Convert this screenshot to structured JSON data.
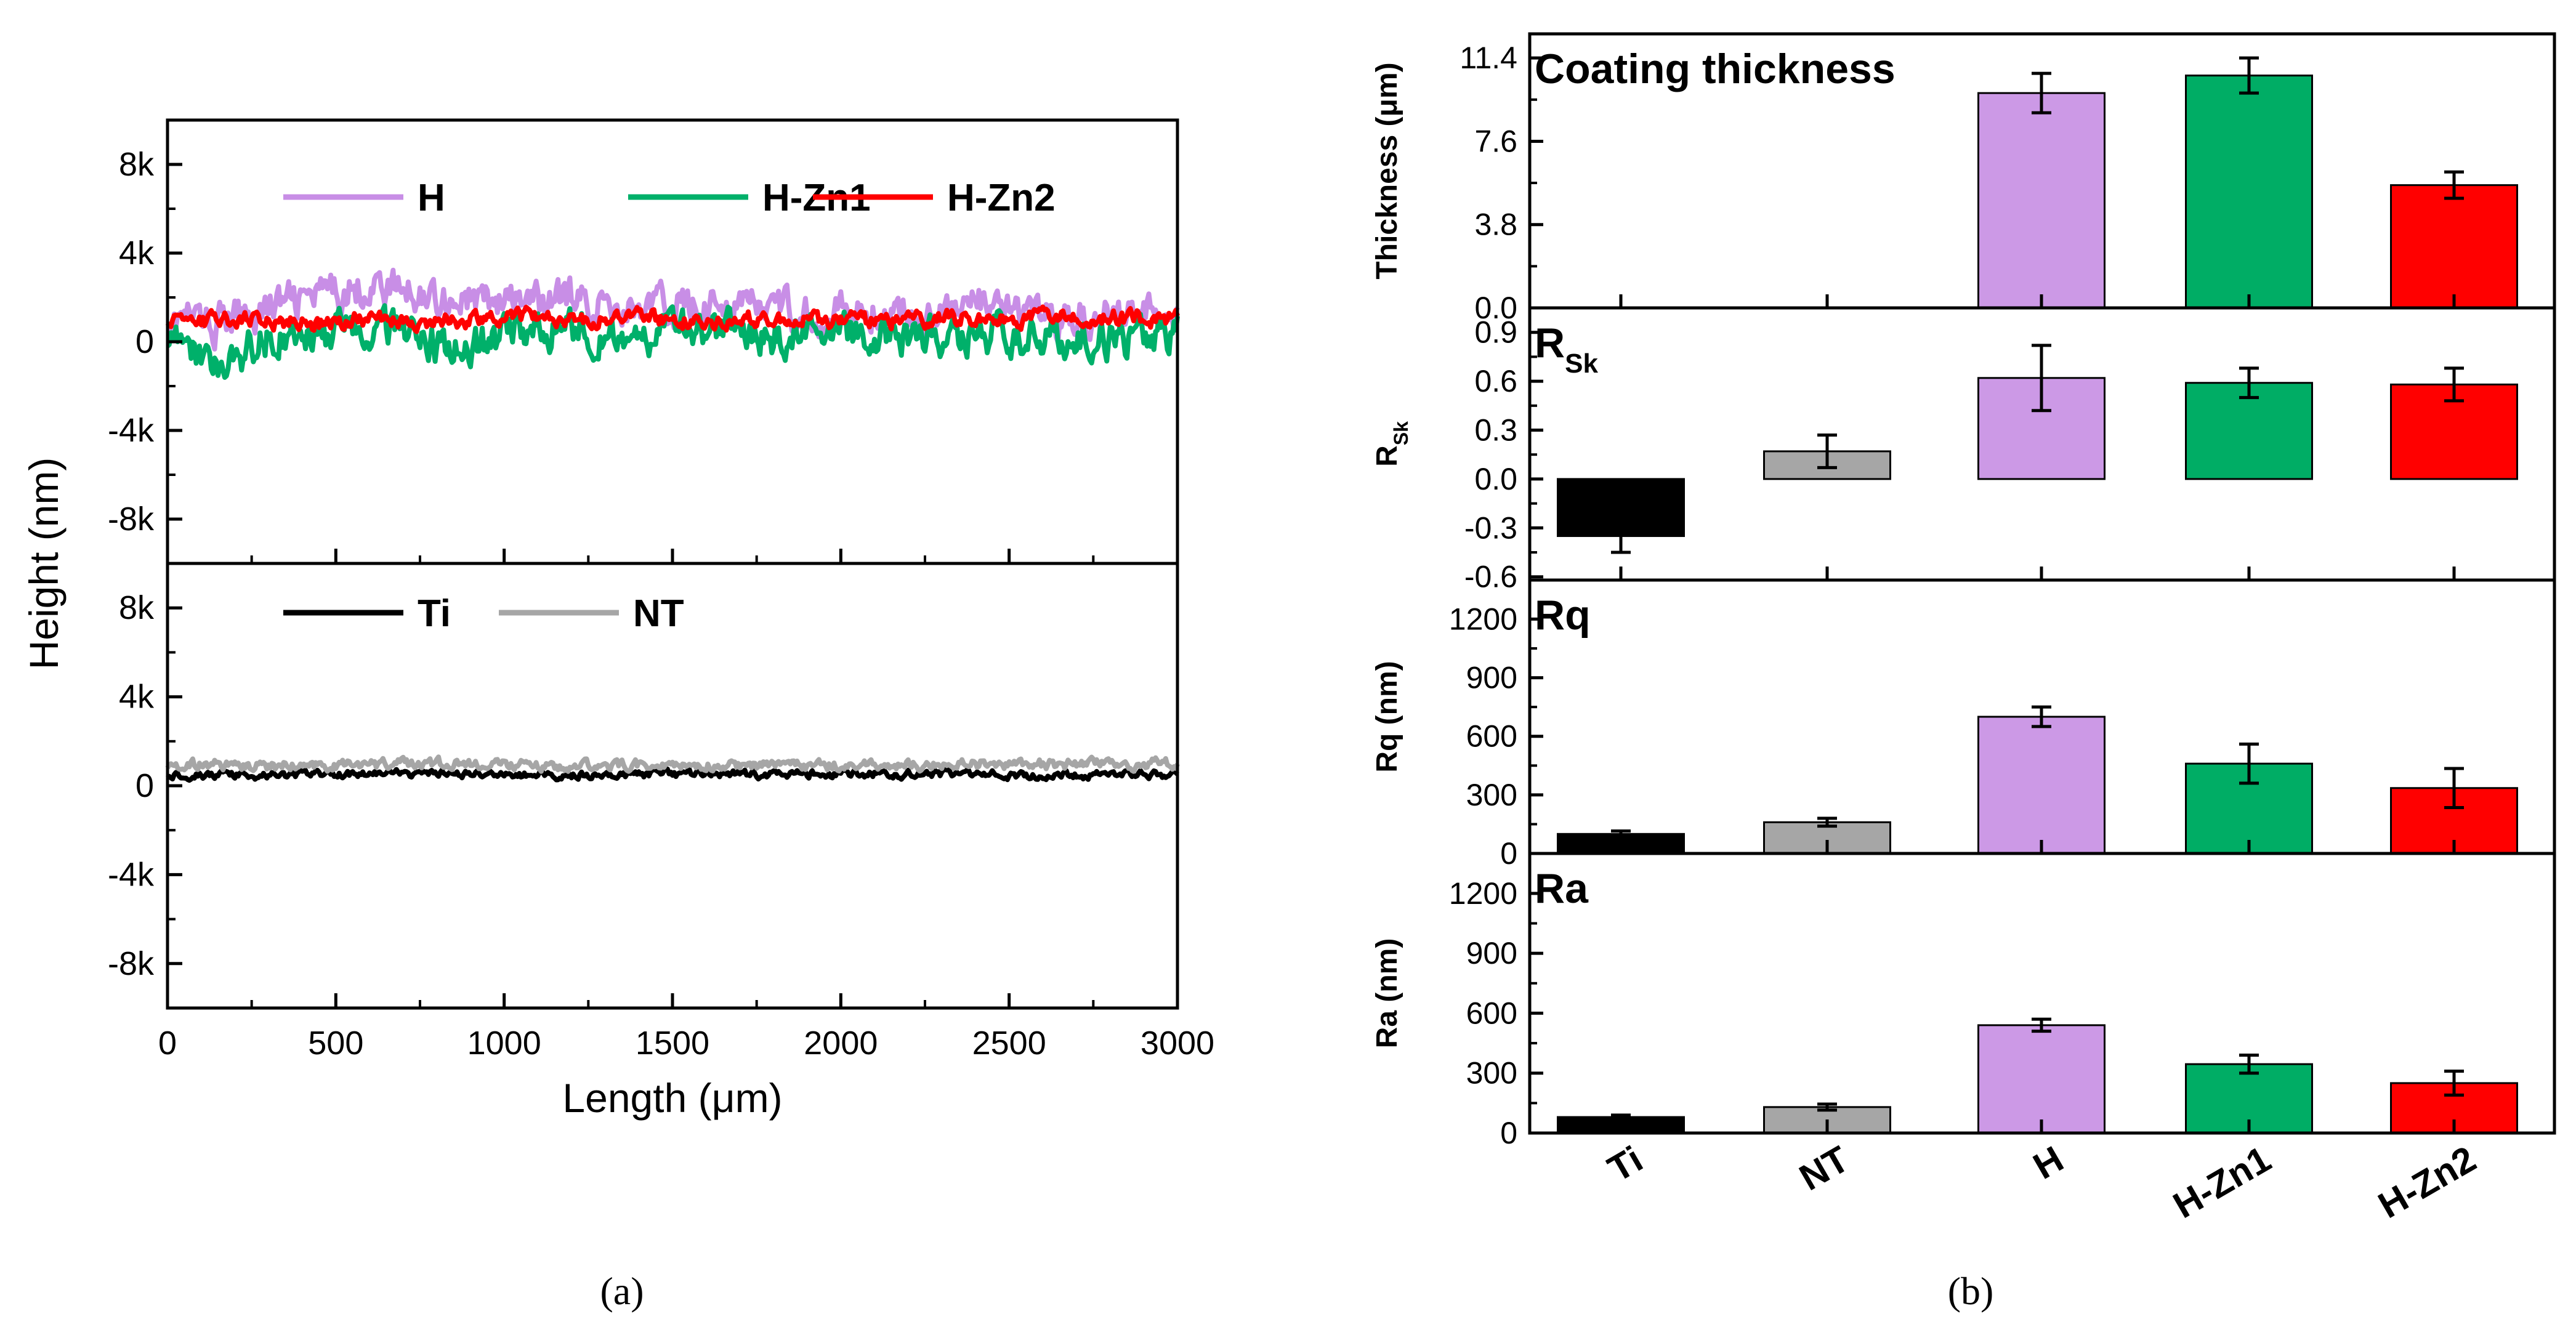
{
  "chart_data": [
    {
      "type": "line",
      "panel": "(a)",
      "title": "",
      "xlabel": "Length (μm)",
      "ylabel": "Height (nm)",
      "xlim": [
        0,
        3000
      ],
      "x_ticks": [
        0,
        500,
        1000,
        1500,
        2000,
        2500,
        3000
      ],
      "x_tick_labels": [
        "0",
        "500",
        "1000",
        "1500",
        "2000",
        "2500",
        "3000"
      ],
      "subplots": [
        {
          "ylim": [
            -10000,
            10000
          ],
          "y_ticks": [
            8000,
            4000,
            0,
            -4000,
            -8000
          ],
          "y_tick_labels": [
            "8k",
            "4k",
            "0",
            "-4k",
            "-8k"
          ],
          "legend_position": "top",
          "series": [
            {
              "name": "H",
              "color": "#c88ee6",
              "mean": 1500,
              "amplitude": 700,
              "x": [
                0,
                150,
                300,
                450,
                600,
                750,
                900,
                1050,
                1200,
                1350,
                1500,
                1650,
                1800,
                1950,
                2100,
                2250,
                2400,
                2550,
                2700,
                2850,
                3000
              ],
              "y": [
                1200,
                800,
                1600,
                2000,
                2600,
                2200,
                1900,
                1700,
                2000,
                1500,
                1600,
                1800,
                1400,
                1300,
                1400,
                1200,
                1800,
                1000,
                1100,
                1300,
                1500
              ]
            },
            {
              "name": "H-Zn1",
              "color": "#00b06a",
              "mean": 300,
              "amplitude": 700,
              "x": [
                0,
                150,
                300,
                450,
                600,
                750,
                900,
                1050,
                1200,
                1350,
                1500,
                1650,
                1800,
                1950,
                2100,
                2250,
                2400,
                2550,
                2700,
                2850,
                3000
              ],
              "y": [
                500,
                -1200,
                200,
                300,
                800,
                100,
                -300,
                400,
                600,
                300,
                400,
                500,
                200,
                300,
                200,
                300,
                400,
                100,
                200,
                100,
                400
              ]
            },
            {
              "name": "H-Zn2",
              "color": "#ff0000",
              "mean": 1000,
              "amplitude": 300,
              "x": [
                0,
                150,
                300,
                450,
                600,
                750,
                900,
                1050,
                1200,
                1350,
                1500,
                1650,
                1800,
                1950,
                2100,
                2250,
                2400,
                2550,
                2700,
                2850,
                3000
              ],
              "y": [
                1000,
                900,
                1000,
                800,
                1100,
                900,
                1000,
                1200,
                1000,
                1100,
                1000,
                900,
                1100,
                1000,
                900,
                1000,
                1100,
                1000,
                1200,
                1000,
                1000
              ]
            }
          ]
        },
        {
          "ylim": [
            -10000,
            10000
          ],
          "y_ticks": [
            8000,
            4000,
            0,
            -4000,
            -8000
          ],
          "y_tick_labels": [
            "8k",
            "4k",
            "0",
            "-4k",
            "-8k"
          ],
          "legend_position": "top",
          "series": [
            {
              "name": "Ti",
              "color": "#000000",
              "mean": 500,
              "amplitude": 150,
              "x": [
                0,
                300,
                600,
                900,
                1200,
                1500,
                1800,
                2100,
                2400,
                2700,
                3000
              ],
              "y": [
                500,
                450,
                550,
                500,
                480,
                520,
                500,
                540,
                500,
                480,
                520
              ]
            },
            {
              "name": "NT",
              "color": "#a6a6a6",
              "mean": 950,
              "amplitude": 200,
              "x": [
                0,
                300,
                600,
                900,
                1200,
                1500,
                1800,
                2100,
                2400,
                2700,
                3000
              ],
              "y": [
                1000,
                900,
                950,
                1000,
                900,
                950,
                900,
                950,
                1000,
                950,
                1000
              ]
            }
          ]
        }
      ]
    },
    {
      "type": "bar",
      "panel": "(b)",
      "categories": [
        "Ti",
        "NT",
        "H",
        "H-Zn1",
        "H-Zn2"
      ],
      "colors": [
        "#000000",
        "#a6a6a6",
        "#cc99e6",
        "#00ad65",
        "#ff0000"
      ],
      "subplots": [
        {
          "title": "Coating thickness",
          "ylabel": "Thickness (μm)",
          "ylim": [
            0,
            12.5
          ],
          "y_ticks": [
            0,
            3.8,
            7.6,
            11.4
          ],
          "y_tick_labels": [
            "0.0",
            "3.8",
            "7.6",
            "11.4"
          ],
          "values": [
            null,
            null,
            9.8,
            10.6,
            5.6
          ],
          "errors": [
            null,
            null,
            0.9,
            0.8,
            0.6
          ]
        },
        {
          "title": "R",
          "title_subscript": "Sk",
          "ylabel": "R",
          "ylabel_subscript": "Sk",
          "ylim": [
            -0.62,
            1.05
          ],
          "y_ticks": [
            -0.6,
            -0.3,
            0.0,
            0.3,
            0.6,
            0.9
          ],
          "y_tick_labels": [
            "-0.6",
            "-0.3",
            "0.0",
            "0.3",
            "0.6",
            "0.9"
          ],
          "values": [
            -0.35,
            0.17,
            0.62,
            0.59,
            0.58
          ],
          "errors": [
            0.1,
            0.1,
            0.2,
            0.09,
            0.1
          ]
        },
        {
          "title": "Rq",
          "ylabel": "Rq (nm)",
          "ylim": [
            0,
            1400
          ],
          "y_ticks": [
            0,
            300,
            600,
            900,
            1200
          ],
          "y_tick_labels": [
            "0",
            "300",
            "600",
            "900",
            "1200"
          ],
          "values": [
            100,
            160,
            700,
            460,
            335
          ],
          "errors": [
            15,
            20,
            50,
            100,
            100
          ]
        },
        {
          "title": "Ra",
          "ylabel": "Ra (nm)",
          "ylim": [
            0,
            1400
          ],
          "y_ticks": [
            0,
            300,
            600,
            900,
            1200
          ],
          "y_tick_labels": [
            "0",
            "300",
            "600",
            "900",
            "1200"
          ],
          "values": [
            80,
            130,
            540,
            345,
            250
          ],
          "errors": [
            10,
            15,
            30,
            45,
            60
          ]
        }
      ]
    }
  ],
  "captions": {
    "a": "(a)",
    "b": "(b)"
  }
}
